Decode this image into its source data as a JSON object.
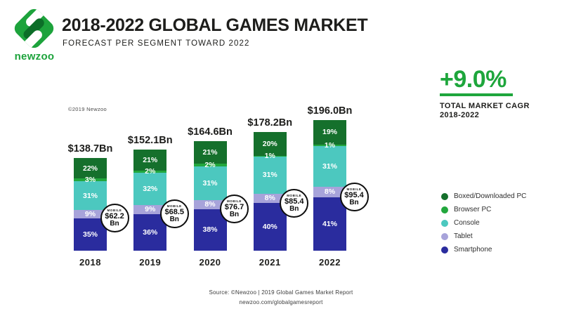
{
  "header": {
    "logo_text": "newzoo",
    "title": "2018-2022 GLOBAL GAMES MARKET",
    "subtitle": "FORECAST PER SEGMENT TOWARD 2022"
  },
  "copyright": "©2019 Newzoo",
  "kpi": {
    "value": "+9.0%",
    "label_line1": "TOTAL MARKET CAGR",
    "label_line2": "2018-2022",
    "accent_color": "#1ea63c"
  },
  "source": {
    "line1": "Source: ©Newzoo | 2019 Global Games Market Report",
    "line2": "newzoo.com/globalgamesreport"
  },
  "chart_data": {
    "type": "bar",
    "subtype": "stacked-percent",
    "title": "2018-2022 Global Games Market",
    "subtitle": "Forecast per Segment toward 2022",
    "unit_note": "segment values are % of yearly total; totals in USD billions",
    "categories": [
      "2018",
      "2019",
      "2020",
      "2021",
      "2022"
    ],
    "totals_bn": [
      138.7,
      152.1,
      164.6,
      178.2,
      196.0
    ],
    "total_labels": [
      "$138.7Bn",
      "$152.1Bn",
      "$164.6Bn",
      "$178.2Bn",
      "$196.0Bn"
    ],
    "series": [
      {
        "name": "Boxed/Downloaded PC",
        "color": "#15702c",
        "percents": [
          22,
          21,
          21,
          20,
          19
        ]
      },
      {
        "name": "Browser PC",
        "color": "#22a73d",
        "percents": [
          3,
          2,
          2,
          1,
          1
        ]
      },
      {
        "name": "Console",
        "color": "#4cc8bf",
        "percents": [
          31,
          32,
          31,
          31,
          31
        ]
      },
      {
        "name": "Tablet",
        "color": "#a7a3da",
        "percents": [
          9,
          9,
          8,
          8,
          8
        ]
      },
      {
        "name": "Smartphone",
        "color": "#2a2c9e",
        "percents": [
          35,
          36,
          38,
          40,
          41
        ]
      }
    ],
    "mobile_callouts": {
      "label": "MOBILE",
      "values": [
        "$62.2",
        "$68.5",
        "$76.7",
        "$85.4",
        "$95.4"
      ],
      "unit": "Bn"
    },
    "legend_position": "right",
    "grid": false
  }
}
